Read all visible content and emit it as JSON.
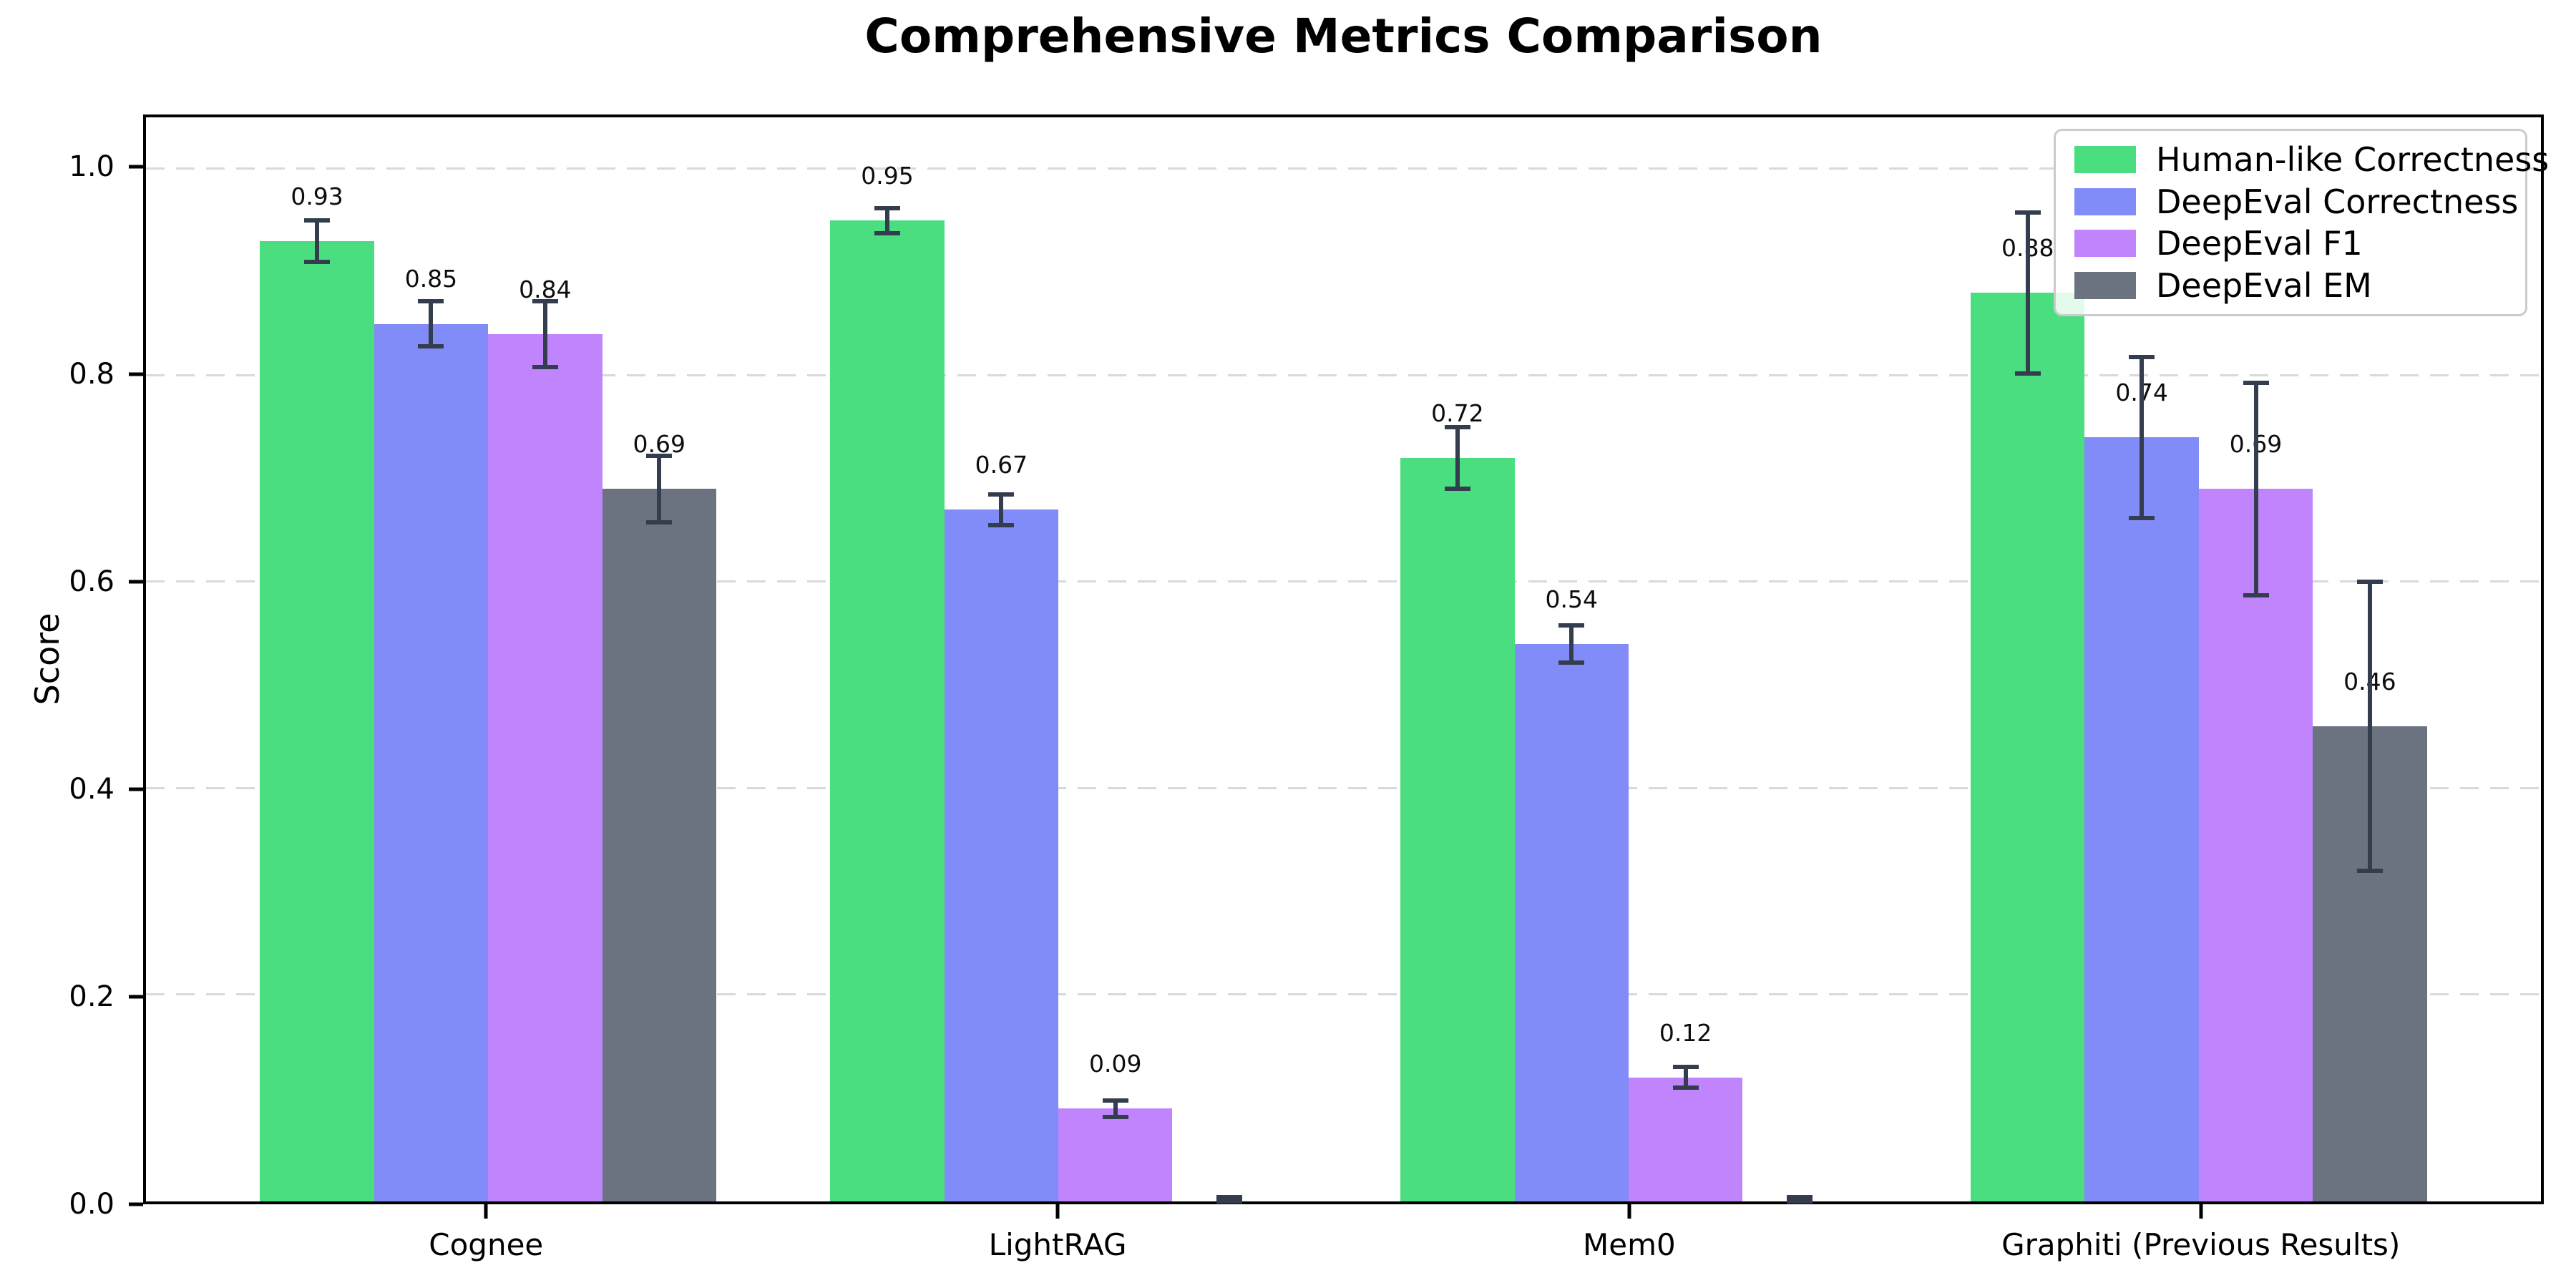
{
  "chart_data": {
    "type": "bar",
    "title": "Comprehensive Metrics Comparison",
    "ylabel": "Score",
    "xlabel": "",
    "ylim": [
      0,
      1.05
    ],
    "yticks": [
      0.0,
      0.2,
      0.4,
      0.6,
      0.8,
      1.0
    ],
    "ytick_labels": [
      "0.0",
      "0.2",
      "0.4",
      "0.6",
      "0.8",
      "1.0"
    ],
    "categories": [
      "Cognee",
      "LightRAG",
      "Mem0",
      "Graphiti (Previous Results)"
    ],
    "grid": "horizontal-dashed",
    "legend_position": "upper right",
    "bar_width_units": 0.2,
    "series": [
      {
        "name": "Human-like Correctness",
        "color": "#4ade80",
        "values": [
          0.93,
          0.95,
          0.72,
          0.88
        ],
        "errors": [
          0.02,
          0.012,
          0.03,
          0.078
        ],
        "labels": [
          "0.93",
          "0.95",
          "0.72",
          "0.88"
        ]
      },
      {
        "name": "DeepEval Correctness",
        "color": "#818cf8",
        "values": [
          0.85,
          0.67,
          0.54,
          0.74
        ],
        "errors": [
          0.022,
          0.015,
          0.018,
          0.078
        ],
        "labels": [
          "0.85",
          "0.67",
          "0.54",
          "0.74"
        ]
      },
      {
        "name": "DeepEval F1",
        "color": "#c084fc",
        "values": [
          0.84,
          0.09,
          0.12,
          0.69
        ],
        "errors": [
          0.032,
          0.008,
          0.01,
          0.103
        ],
        "labels": [
          "0.84",
          "0.09",
          "0.12",
          "0.69"
        ]
      },
      {
        "name": "DeepEval EM",
        "color": "#6b7280",
        "values": [
          0.69,
          0.0,
          0.0,
          0.46
        ],
        "errors": [
          0.032,
          0.004,
          0.004,
          0.14
        ],
        "labels": [
          "0.69",
          "",
          "",
          "0.46"
        ]
      }
    ],
    "style": {
      "error_bar_color": "#333d4d",
      "grid_color": "#d9d9d9",
      "axis_color": "#000000",
      "text_color": "#000000",
      "legend_border_color": "#cbcbcb"
    }
  }
}
